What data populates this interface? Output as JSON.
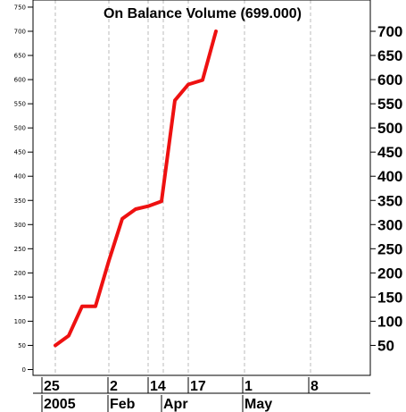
{
  "chart_data": {
    "type": "line",
    "title": "On Balance Volume (699.000)",
    "color": "#ee1111",
    "ylim": [
      -5,
      760
    ],
    "y_ticks_left": [
      0,
      50,
      100,
      150,
      200,
      250,
      300,
      350,
      400,
      450,
      500,
      550,
      600,
      650,
      700,
      750
    ],
    "y_ticks_right": [
      50,
      100,
      150,
      200,
      250,
      300,
      350,
      400,
      450,
      500,
      550,
      600,
      650,
      700
    ],
    "x_day_labels": [
      "25",
      "2",
      "14",
      "17",
      "1",
      "8"
    ],
    "x_month_labels": [
      "2005",
      "Feb",
      "Apr",
      "May"
    ],
    "series": [
      {
        "values": [
          50,
          70,
          131,
          131,
          225,
          312,
          332,
          338,
          348,
          557,
          590,
          599,
          700
        ]
      }
    ],
    "grid": true
  }
}
